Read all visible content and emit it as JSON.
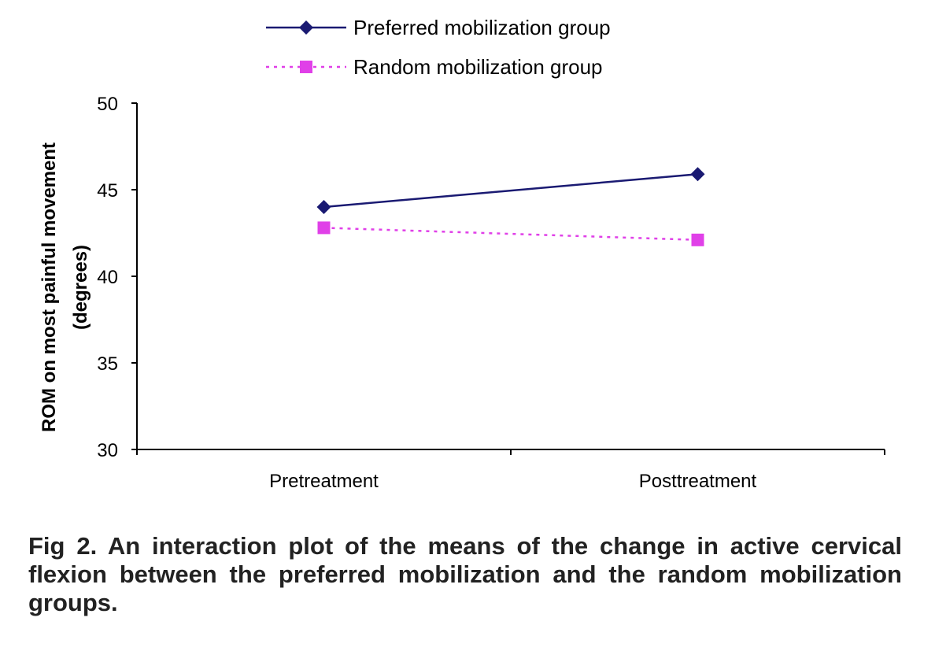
{
  "figure": {
    "caption": "Fig 2. An interaction plot of the means of the change in active cervical flexion between the preferred mobilization and the random mobilization groups."
  },
  "chart_data": {
    "type": "line",
    "categories": [
      "Pretreatment",
      "Posttreatment"
    ],
    "series": [
      {
        "name": "Preferred mobilization group",
        "values": [
          44.0,
          45.9
        ],
        "color": "#1a1a72",
        "line_style": "solid",
        "marker": "diamond"
      },
      {
        "name": "Random mobilization group",
        "values": [
          42.8,
          42.1
        ],
        "color": "#e040e8",
        "line_style": "dotted",
        "marker": "square"
      }
    ],
    "ylabel_line1": "ROM on most painful movement",
    "ylabel_line2": "(degrees)",
    "ylim": [
      30,
      50
    ],
    "yticks": [
      30,
      35,
      40,
      45,
      50
    ],
    "grid": false,
    "legend_position": "top"
  }
}
